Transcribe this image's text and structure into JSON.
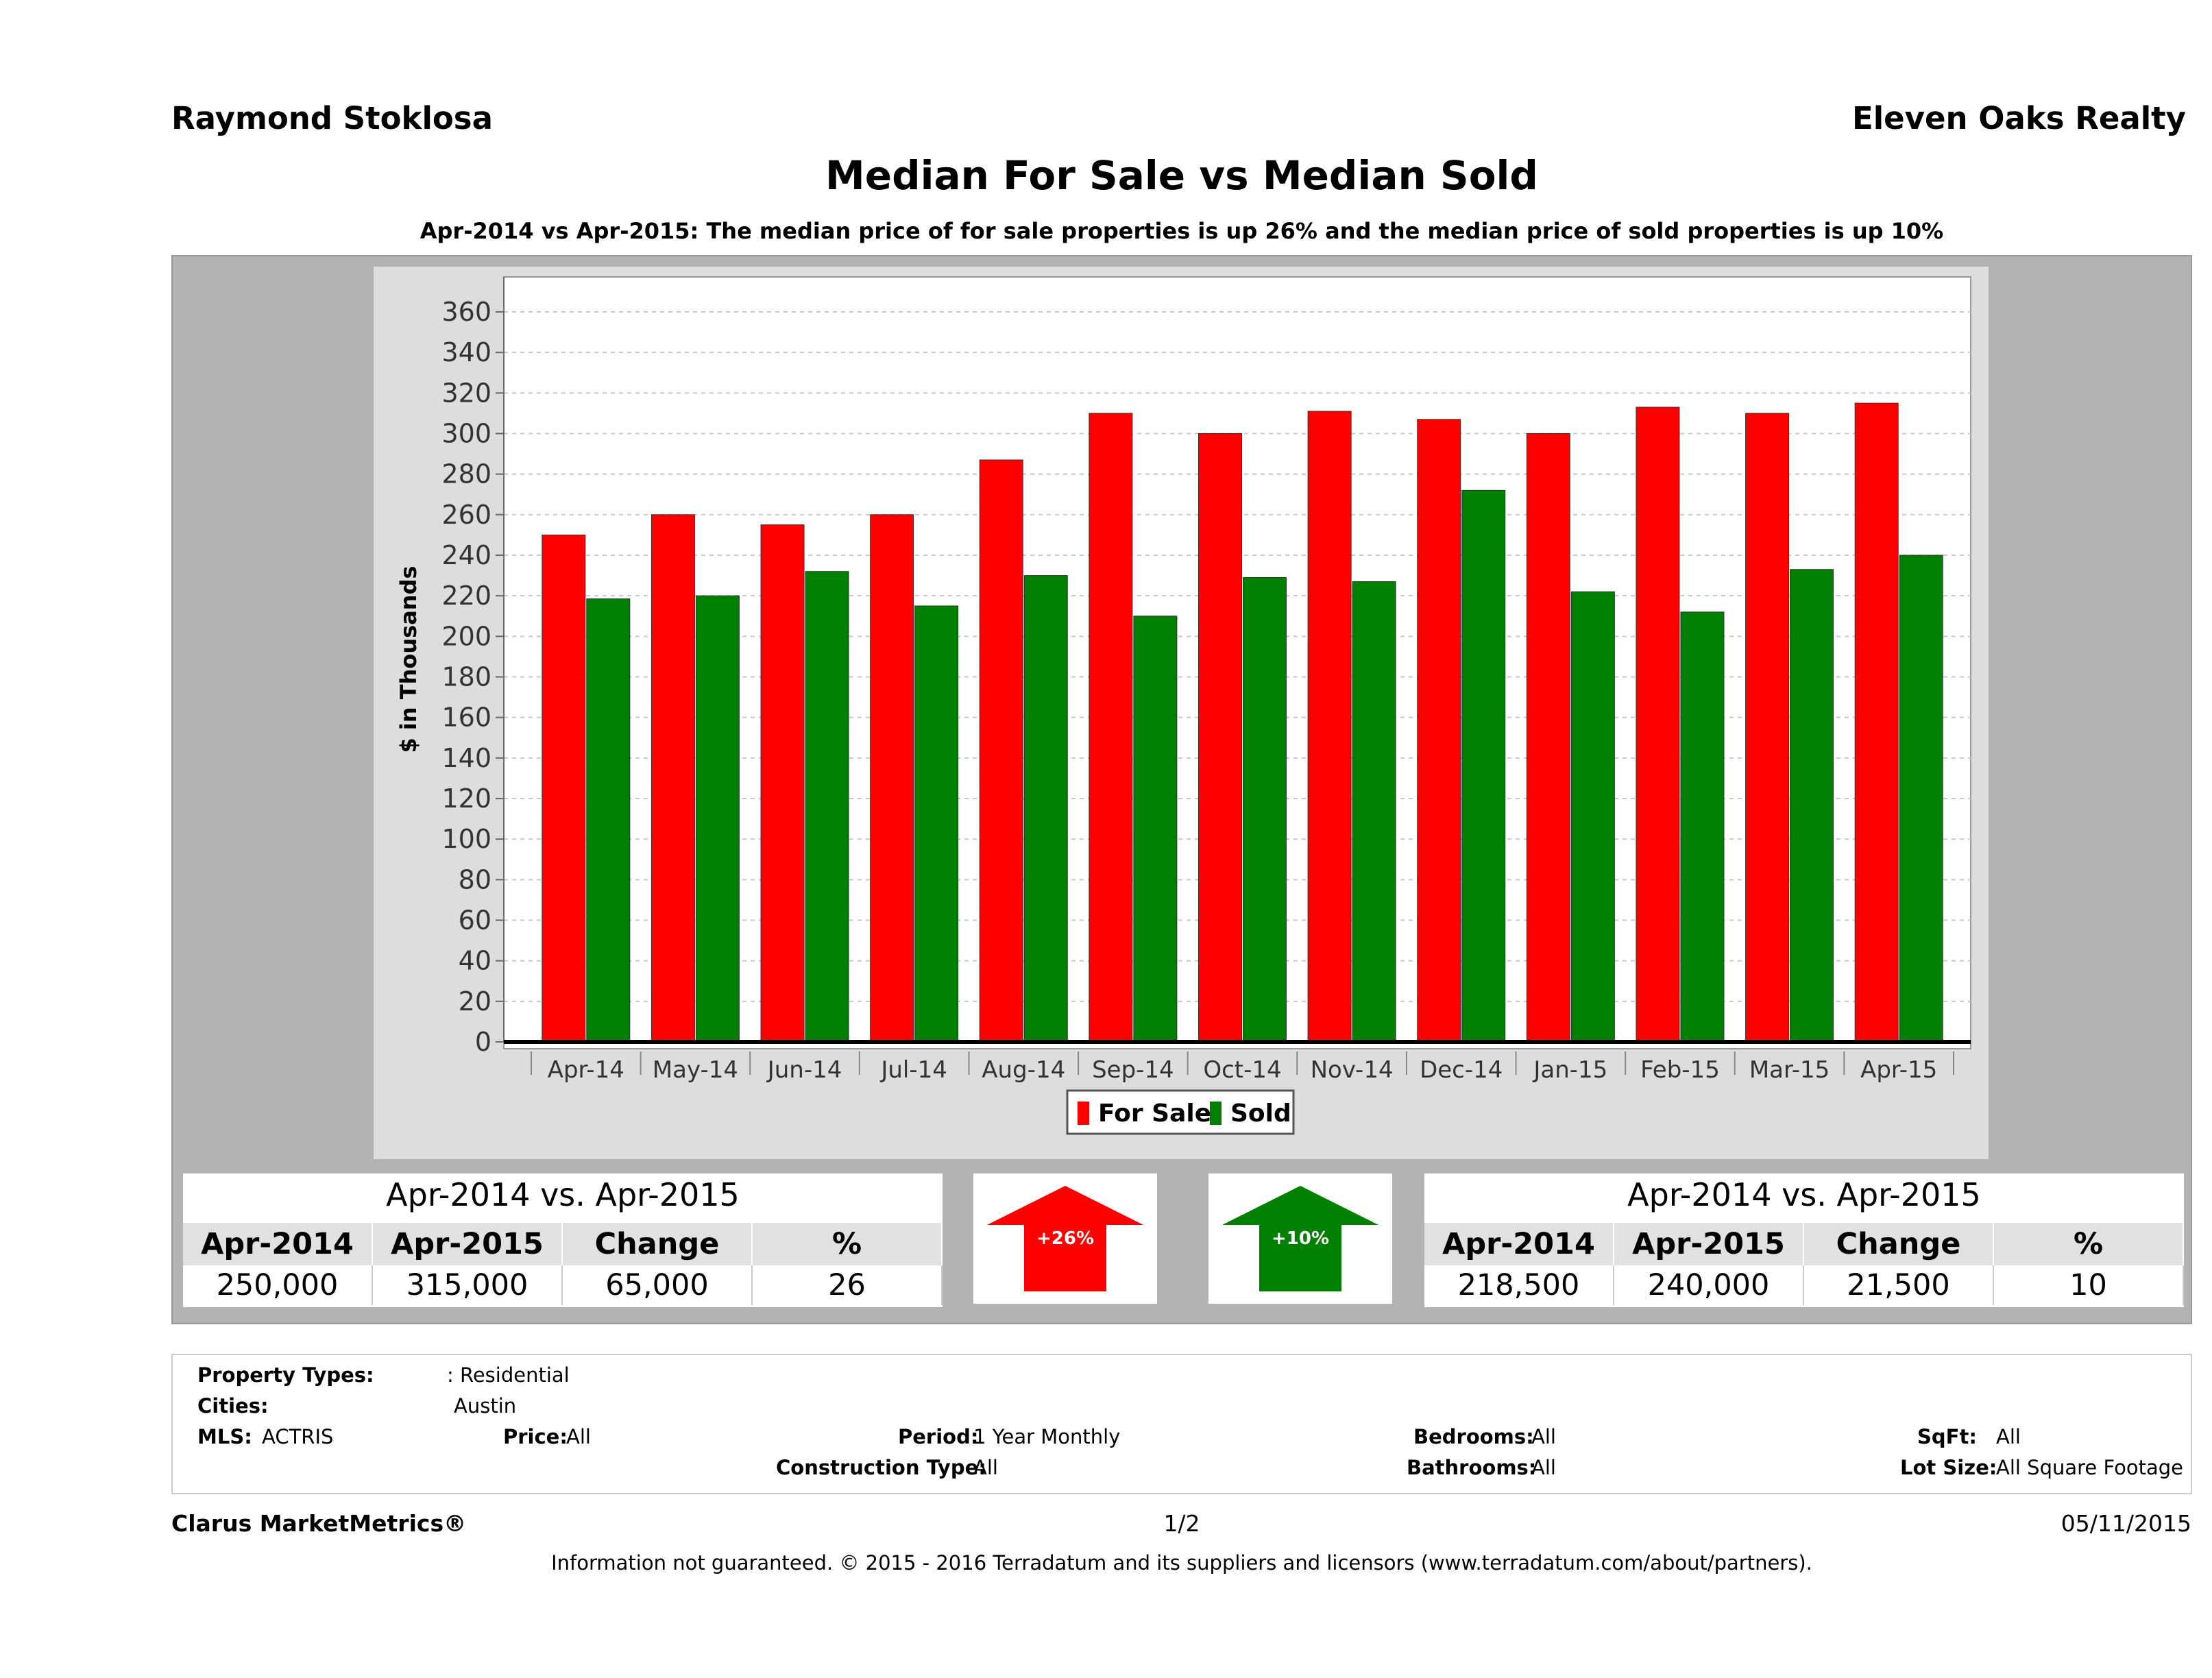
{
  "header": {
    "agent_name": "Raymond Stoklosa",
    "company": "Eleven Oaks Realty",
    "title": "Median For Sale vs Median Sold",
    "subtitle": "Apr-2014 vs Apr-2015: The median price of for sale properties is up 26% and the median price of sold properties is up 10%"
  },
  "chart_data": {
    "type": "bar",
    "categories": [
      "Apr-14",
      "May-14",
      "Jun-14",
      "Jul-14",
      "Aug-14",
      "Sep-14",
      "Oct-14",
      "Nov-14",
      "Dec-14",
      "Jan-15",
      "Feb-15",
      "Mar-15",
      "Apr-15"
    ],
    "series": [
      {
        "name": "For Sale",
        "color": "#ff0000",
        "values": [
          250,
          260,
          255,
          260,
          287,
          310,
          300,
          311,
          307,
          300,
          313,
          310,
          315
        ]
      },
      {
        "name": "Sold",
        "color": "#008000",
        "values": [
          218.5,
          220,
          232,
          215,
          230,
          210,
          229,
          227,
          272,
          222,
          212,
          233,
          240
        ]
      }
    ],
    "xlabel": "",
    "ylabel": "$ in Thousands",
    "ylim": [
      0,
      360
    ],
    "yticks": [
      0,
      20,
      40,
      60,
      80,
      100,
      120,
      140,
      160,
      180,
      200,
      220,
      240,
      260,
      280,
      300,
      320,
      340,
      360
    ],
    "grid": true,
    "legend_position": "bottom-center"
  },
  "for_sale_stats": {
    "title": "Apr-2014 vs. Apr-2015",
    "headers": [
      "Apr-2014",
      "Apr-2015",
      "Change",
      "%"
    ],
    "values": [
      "250,000",
      "315,000",
      "65,000",
      "26"
    ],
    "arrow_label": "+26%",
    "arrow_color": "#ff0000"
  },
  "sold_stats": {
    "title": "Apr-2014 vs. Apr-2015",
    "headers": [
      "Apr-2014",
      "Apr-2015",
      "Change",
      "%"
    ],
    "values": [
      "218,500",
      "240,000",
      "21,500",
      "10"
    ],
    "arrow_label": "+10%",
    "arrow_color": "#008000"
  },
  "criteria": {
    "property_types_label": "Property Types:",
    "property_types_value": ": Residential",
    "cities_label": "Cities:",
    "cities_value": "Austin",
    "mls_label": "MLS:",
    "mls_value": "ACTRIS",
    "price_label": "Price:",
    "price_value": "All",
    "period_label": "Period:",
    "period_value": "1 Year Monthly",
    "construction_label": "Construction Type:",
    "construction_value": "All",
    "bedrooms_label": "Bedrooms:",
    "bedrooms_value": "All",
    "bathrooms_label": "Bathrooms:",
    "bathrooms_value": "All",
    "sqft_label": "SqFt:",
    "sqft_value": "All",
    "lotsize_label": "Lot Size:",
    "lotsize_value": "All Square Footage"
  },
  "footer": {
    "brand": "Clarus MarketMetrics®",
    "page": "1/2",
    "date": "05/11/2015",
    "disclaimer": "Information not guaranteed. © 2015 - 2016 Terradatum and its suppliers and licensors (www.terradatum.com/about/partners)."
  }
}
